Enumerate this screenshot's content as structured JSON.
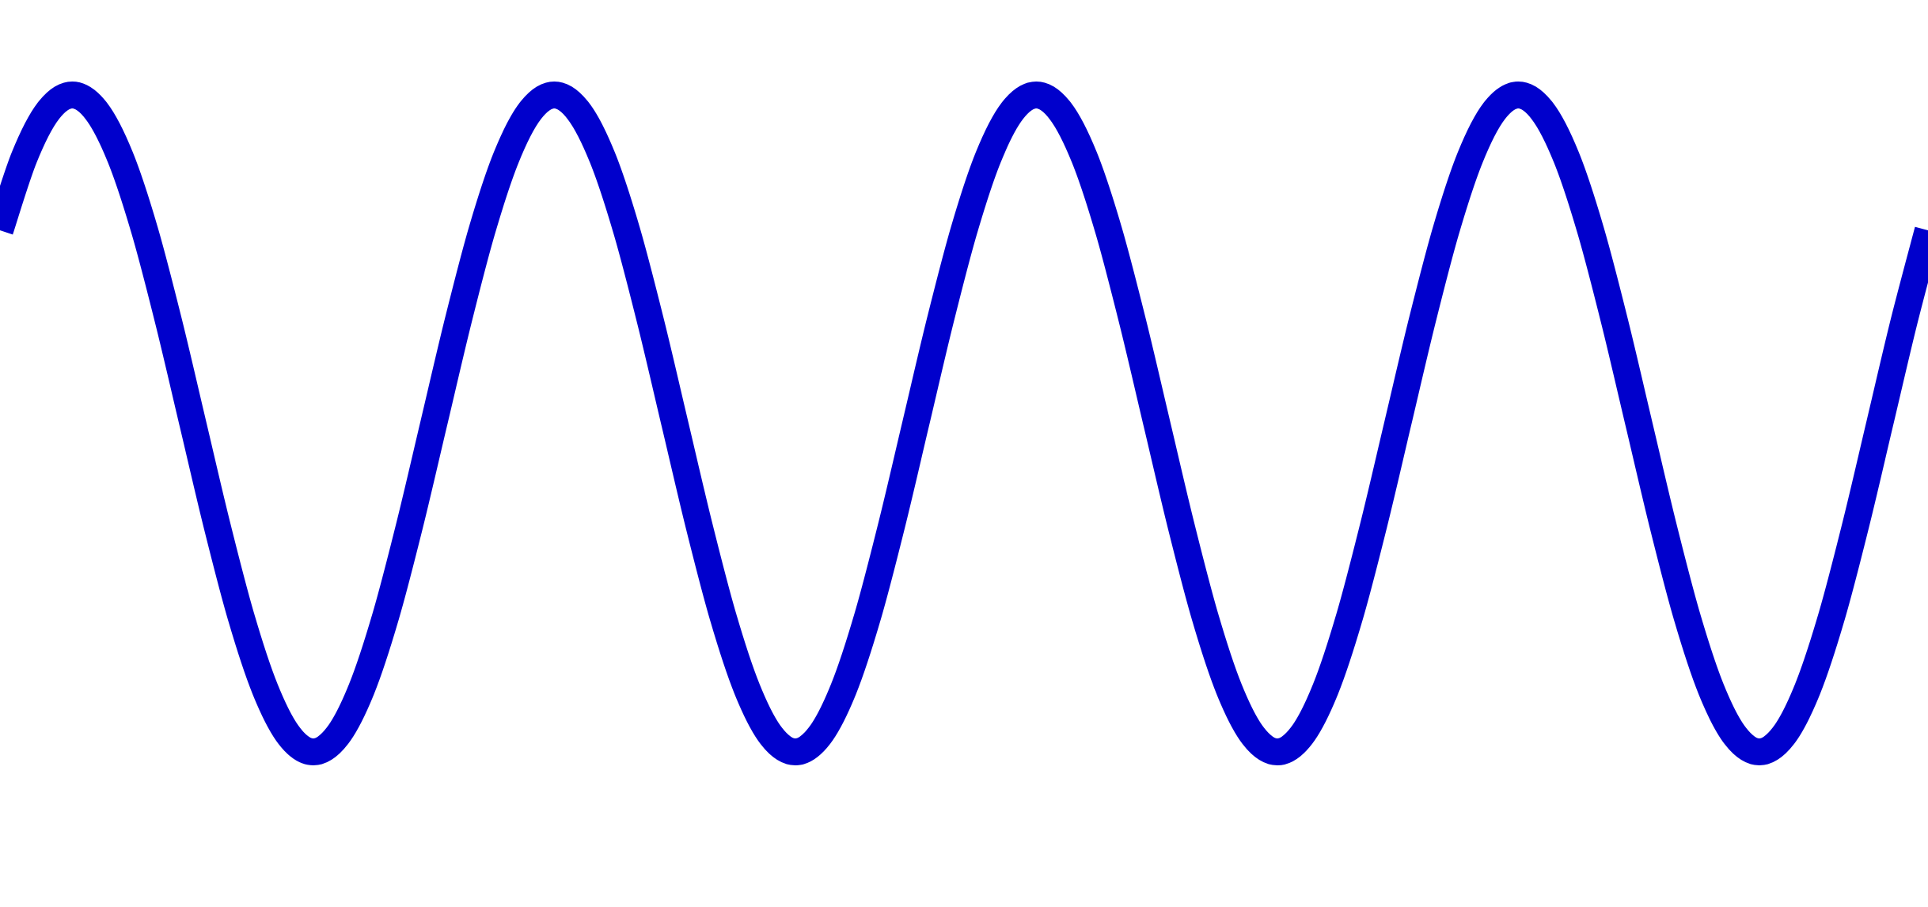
{
  "chart_data": {
    "type": "line",
    "title": "",
    "xlabel": "",
    "ylabel": "",
    "grid": false,
    "axes_visible": false,
    "line_color": "#0000cc",
    "background_color": "#ffffff",
    "series": [
      {
        "x": [
          0.0,
          0.25,
          0.5,
          0.75,
          1.0,
          1.25,
          1.5,
          1.75,
          2.0,
          2.25,
          2.5,
          2.75,
          3.0,
          3.25,
          3.5,
          3.75,
          4.0,
          4.25,
          4.5,
          4.75,
          5.0,
          5.25,
          5.5,
          5.75,
          6.0,
          6.25,
          6.5,
          6.75,
          7.0,
          7.25,
          7.5,
          7.75,
          8.0,
          8.25,
          8.5,
          8.75,
          9.0,
          9.25,
          9.5,
          9.75,
          10.0,
          10.25,
          10.5,
          10.75,
          11.0,
          11.25,
          11.5,
          11.75,
          12.0,
          12.25,
          12.5,
          12.75,
          13.0,
          13.25,
          13.5,
          13.75,
          14.0,
          14.25,
          14.5,
          14.75,
          15.0,
          15.25,
          15.5,
          15.75,
          16.0,
          16.25,
          16.5,
          16.75,
          17.0,
          17.25,
          17.5,
          17.75,
          18.0,
          18.25,
          18.5,
          18.75,
          19.0,
          19.25,
          19.5,
          19.75,
          20.0
        ],
        "y": [
          0.588,
          0.809,
          0.951,
          1.0,
          0.951,
          0.809,
          0.588,
          0.309,
          0.0,
          -0.309,
          -0.588,
          -0.809,
          -0.951,
          -1.0,
          -0.951,
          -0.809,
          -0.588,
          -0.309,
          0.0,
          0.309,
          0.588,
          0.809,
          0.951,
          1.0,
          0.951,
          0.809,
          0.588,
          0.309,
          0.0,
          -0.309,
          -0.588,
          -0.809,
          -0.951,
          -1.0,
          -0.951,
          -0.809,
          -0.588,
          -0.309,
          0.0,
          0.309,
          0.588,
          0.809,
          0.951,
          1.0,
          0.951,
          0.809,
          0.588,
          0.309,
          0.0,
          -0.309,
          -0.588,
          -0.809,
          -0.951,
          -1.0,
          -0.951,
          -0.809,
          -0.588,
          -0.309,
          0.0,
          0.309,
          0.588,
          0.809,
          0.951,
          1.0,
          0.951,
          0.809,
          0.588,
          0.309,
          0.0,
          -0.309,
          -0.588,
          -0.809,
          -0.951,
          -1.0,
          -0.951,
          -0.809,
          -0.588,
          -0.309,
          0.0,
          0.309,
          0.588
        ]
      }
    ],
    "xlim": [
      0.0,
      20.0
    ],
    "ylim": [
      -1.0,
      1.0
    ]
  }
}
